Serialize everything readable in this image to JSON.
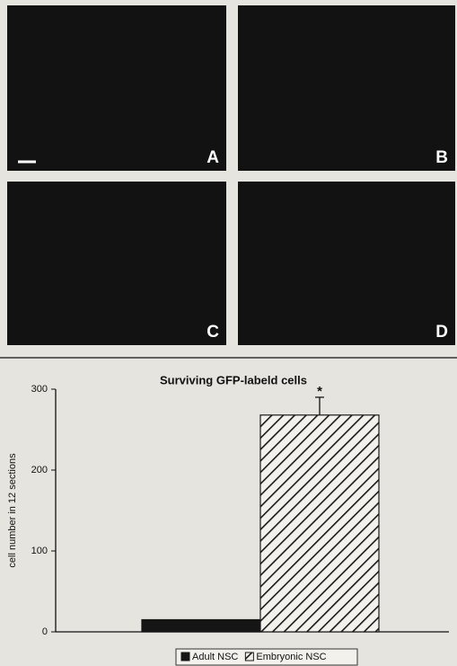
{
  "panels": [
    {
      "label": "A"
    },
    {
      "label": "B"
    },
    {
      "label": "C"
    },
    {
      "label": "D"
    }
  ],
  "chart_data": {
    "type": "bar",
    "title": "Surviving GFP-labeld cells",
    "y_label": "cell number in 12 sections",
    "categories": [
      null
    ],
    "series": [
      {
        "name": "Adult NSC",
        "color": "#151515",
        "hatch": false,
        "values": [
          15
        ]
      },
      {
        "name": "Embryonic NSC",
        "color": "#1a1a1a",
        "hatch": true,
        "values": [
          268
        ],
        "errors": [
          22
        ]
      }
    ],
    "annotations": [
      {
        "text": "*",
        "series": 1
      }
    ],
    "ylim": [
      0,
      300
    ],
    "yticks": [
      0,
      100,
      200,
      300
    ],
    "grid": false
  }
}
